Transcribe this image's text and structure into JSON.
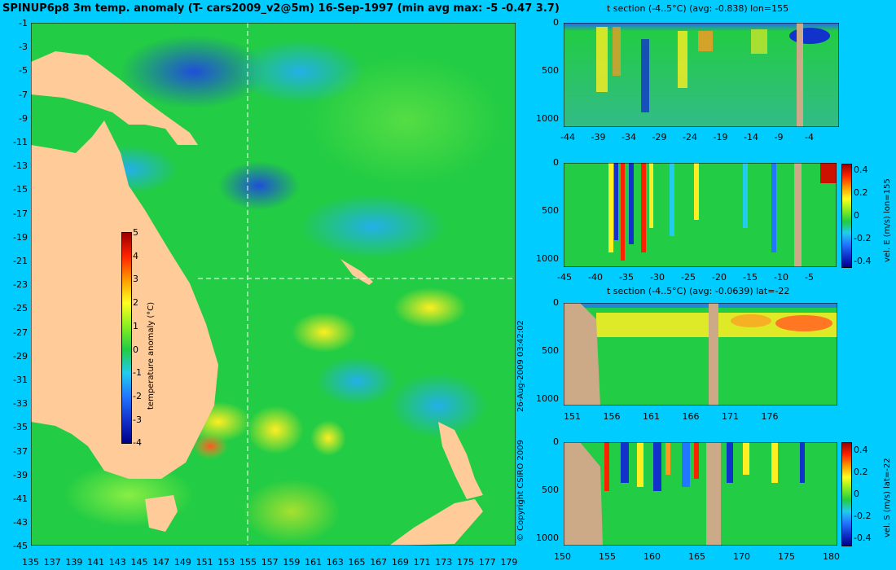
{
  "chart_data": [
    {
      "type": "heatmap",
      "title": "SPINUP6p8 3m temp. anomaly (T- cars2009_v2@5m) 16-Sep-1997 (min avg max: -5 -0.47 3.7)",
      "x_ticks": [
        "135",
        "137",
        "139",
        "141",
        "143",
        "145",
        "147",
        "149",
        "151",
        "153",
        "155",
        "157",
        "159",
        "161",
        "163",
        "165",
        "167",
        "169",
        "171",
        "173",
        "175",
        "177",
        "179"
      ],
      "y_ticks": [
        "-1",
        "-3",
        "-5",
        "-7",
        "-9",
        "-11",
        "-13",
        "-15",
        "-17",
        "-19",
        "-21",
        "-23",
        "-25",
        "-27",
        "-29",
        "-31",
        "-33",
        "-35",
        "-37",
        "-39",
        "-41",
        "-43",
        "-45"
      ],
      "xlim": [
        135,
        180
      ],
      "ylim": [
        -45,
        0
      ],
      "section_lines": {
        "lon": 155,
        "lat": -22
      },
      "colorbar": {
        "label": "temperature anomaly (°C)",
        "ticks": [
          "5",
          "4",
          "3",
          "2",
          "1",
          "0",
          "-1",
          "-2",
          "-3",
          "-4"
        ],
        "range": [
          -4,
          5
        ]
      }
    },
    {
      "type": "heatmap",
      "title": "t section (-4..5°C) (avg: -0.838) lon=155",
      "x_ticks": [
        "-44",
        "-39",
        "-34",
        "-29",
        "-24",
        "-19",
        "-14",
        "-9",
        "-4"
      ],
      "y_ticks": [
        "0",
        "500",
        "1000"
      ],
      "ylim": [
        1050,
        0
      ]
    },
    {
      "type": "heatmap",
      "title": "",
      "x_ticks": [
        "-45",
        "-40",
        "-35",
        "-30",
        "-25",
        "-20",
        "-15",
        "-10",
        "-5"
      ],
      "y_ticks": [
        "0",
        "500",
        "1000"
      ],
      "colorbar": {
        "label": "vel. E (m/s) lon=155",
        "ticks": [
          "0.4",
          "0.2",
          "0",
          "-0.2",
          "-0.4"
        ],
        "range": [
          -0.45,
          0.45
        ]
      }
    },
    {
      "type": "heatmap",
      "title": "t section (-4..5°C) (avg: -0.0639) lat=-22",
      "x_ticks": [
        "151",
        "156",
        "161",
        "166",
        "171",
        "176"
      ],
      "y_ticks": [
        "0",
        "500",
        "1000"
      ]
    },
    {
      "type": "heatmap",
      "title": "",
      "x_ticks": [
        "150",
        "155",
        "160",
        "165",
        "170",
        "175",
        "180"
      ],
      "y_ticks": [
        "0",
        "500",
        "1000"
      ],
      "colorbar": {
        "label": "vel. S (m/s) lat=-22",
        "ticks": [
          "0.4",
          "0.2",
          "0",
          "-0.2",
          "-0.4"
        ],
        "range": [
          -0.45,
          0.45
        ]
      }
    }
  ],
  "side_text": {
    "timestamp": "26-Aug-2009 03:42:02",
    "copyright": "© Copyright CSIRO 2009"
  },
  "colors": {
    "background": "#00ccff",
    "land": "#ffcc99",
    "section_land": "#ccaa88",
    "ocean": "#22cc44"
  }
}
